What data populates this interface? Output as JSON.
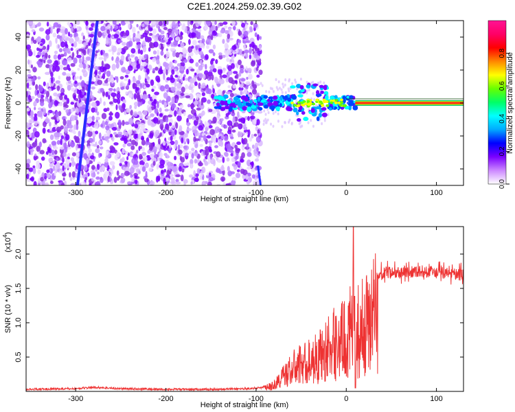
{
  "title": "C2E1.2024.259.02.39.G02",
  "chart_data": [
    {
      "type": "heatmap",
      "xlabel": "Height of straight line (km)",
      "ylabel": "Frequency (Hz)",
      "xlim": [
        -355,
        130
      ],
      "ylim": [
        -50,
        50
      ],
      "xticks": [
        -300,
        -200,
        -100,
        0,
        100
      ],
      "yticks": [
        -40,
        -20,
        0,
        20,
        40
      ],
      "colorbar": {
        "label": "Normalized spectral amplitude",
        "range": [
          0,
          1
        ],
        "ticks": [
          0.0,
          0.2,
          0.4,
          0.6,
          0.8
        ],
        "colors": [
          "#ffffff",
          "#cc88ff",
          "#7a00ff",
          "#0000ff",
          "#00aaff",
          "#00ffff",
          "#00ff66",
          "#66ff00",
          "#ffff00",
          "#ff8800",
          "#ff0000",
          "#ff0066",
          "#ff1493"
        ]
      },
      "noise_region_x": [
        -355,
        -95
      ],
      "sloped_line": [
        [
          -298,
          -50
        ],
        [
          -276,
          50
        ]
      ],
      "signal_band": {
        "x": [
          -145,
          130
        ],
        "frequency": 0
      },
      "grid": false
    },
    {
      "type": "line",
      "xlabel": "Height of straight line (km)",
      "ylabel": "SNR (10 * v/v)",
      "yscale_label": "(x10",
      "yscale_exp": "4",
      "xlim": [
        -355,
        130
      ],
      "ylim": [
        0,
        2.4
      ],
      "xticks": [
        -300,
        -200,
        -100,
        0,
        100
      ],
      "yticks": [
        0.5,
        1.0,
        1.5,
        2.0
      ],
      "series": [
        {
          "color": "#ee3333",
          "envelope": [
            [
              -355,
              0.03
            ],
            [
              -300,
              0.04
            ],
            [
              -280,
              0.06
            ],
            [
              -250,
              0.04
            ],
            [
              -200,
              0.03
            ],
            [
              -150,
              0.03
            ],
            [
              -110,
              0.04
            ],
            [
              -95,
              0.05
            ],
            [
              -80,
              0.12
            ],
            [
              -70,
              0.3
            ],
            [
              -60,
              0.45
            ],
            [
              -50,
              0.55
            ],
            [
              -40,
              0.6
            ],
            [
              -30,
              0.7
            ],
            [
              -20,
              0.85
            ],
            [
              -10,
              1.0
            ],
            [
              0,
              1.05
            ],
            [
              5,
              1.2
            ],
            [
              10,
              1.15
            ],
            [
              20,
              1.3
            ],
            [
              30,
              1.6
            ],
            [
              40,
              1.72
            ],
            [
              60,
              1.74
            ],
            [
              80,
              1.75
            ],
            [
              100,
              1.73
            ],
            [
              115,
              1.72
            ],
            [
              130,
              1.7
            ]
          ],
          "spike": [
            8,
            2.4
          ]
        }
      ],
      "grid": false
    }
  ]
}
